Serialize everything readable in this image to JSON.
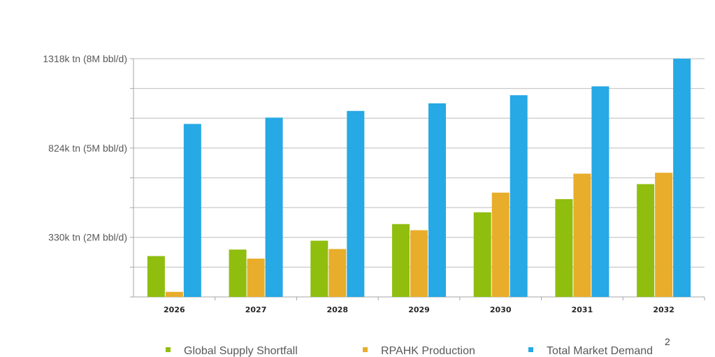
{
  "chart_data": {
    "type": "bar",
    "title": "",
    "xlabel": "",
    "ylabel": "",
    "categories": [
      "2026",
      "2027",
      "2028",
      "2029",
      "2030",
      "2031",
      "2032"
    ],
    "series": [
      {
        "name": "Global Supply Shortfall",
        "color": "#8fbe0f",
        "values": [
          226,
          262,
          311,
          403,
          468,
          541,
          624
        ]
      },
      {
        "name": "RPAHK Production",
        "color": "#e8ad2a",
        "values": [
          28,
          212,
          265,
          369,
          577,
          682,
          687
        ]
      },
      {
        "name": "Total Market Demand",
        "color": "#26a9e4",
        "values": [
          957,
          992,
          1029,
          1071,
          1116,
          1165,
          1318
        ]
      }
    ],
    "ylim": [
      0,
      1318
    ],
    "yticks": [
      {
        "value": 330,
        "label": "330k tn (2M bbl/d)"
      },
      {
        "value": 824,
        "label": "824k tn (5M bbl/d)"
      },
      {
        "value": 1318,
        "label": "1318k tn  (8M bbl/d)"
      }
    ],
    "grid": true,
    "legend_position": "bottom"
  },
  "page_number": "2"
}
